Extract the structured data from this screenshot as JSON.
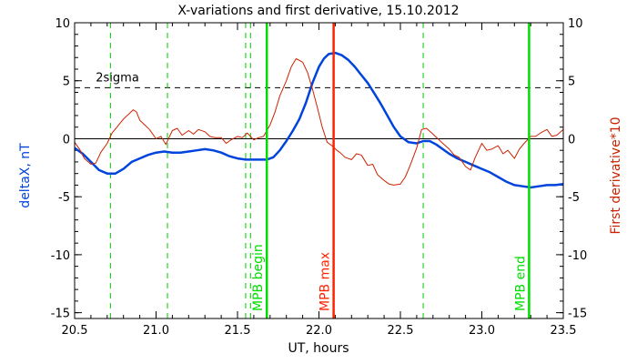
{
  "chart_data": {
    "type": "line",
    "title": "X-variations and first derivative, 15.10.2012",
    "xlabel": "UT, hours",
    "ylabel_left": "deltaX, nT",
    "ylabel_right": "First derivative*10",
    "xlim": [
      20.5,
      23.5
    ],
    "ylim": [
      -15.5,
      10
    ],
    "x_ticks": [
      "20.5",
      "21.0",
      "21.5",
      "22.0",
      "22.5",
      "23.0",
      "23.5"
    ],
    "x_tick_values": [
      20.5,
      21.0,
      21.5,
      22.0,
      22.5,
      23.0,
      23.5
    ],
    "y_ticks": [
      "10",
      "5",
      "0",
      "-5",
      "-10",
      "-15"
    ],
    "y_tick_values": [
      10,
      5,
      0,
      -5,
      -10,
      -15
    ],
    "sigma": {
      "label": "2sigma",
      "value": 4.4
    },
    "zero_line": 0,
    "dashed_markers": [
      20.72,
      21.07,
      21.55,
      21.58,
      22.64
    ],
    "markers": [
      {
        "label": "MPB begin",
        "x": 21.68,
        "color": "#00dd00"
      },
      {
        "label": "MPB max",
        "x": 22.09,
        "color": "#ff2200"
      },
      {
        "label": "MPB end",
        "x": 23.29,
        "color": "#00dd00"
      }
    ],
    "colors": {
      "deltaX": "#0044dd",
      "derivative": "#cc2200",
      "markers_dashed": "#00cc00"
    },
    "series": [
      {
        "axis": "left",
        "x": [
          20.5,
          20.55,
          20.6,
          20.65,
          20.7,
          20.75,
          20.8,
          20.85,
          20.9,
          20.95,
          21.0,
          21.05,
          21.1,
          21.15,
          21.2,
          21.25,
          21.3,
          21.35,
          21.4,
          21.45,
          21.5,
          21.55,
          21.6,
          21.65,
          21.68,
          21.72,
          21.76,
          21.8,
          21.84,
          21.88,
          21.92,
          21.96,
          22.0,
          22.03,
          22.06,
          22.1,
          22.14,
          22.18,
          22.22,
          22.26,
          22.3,
          22.34,
          22.38,
          22.42,
          22.46,
          22.5,
          22.55,
          22.6,
          22.64,
          22.68,
          22.72,
          22.76,
          22.8,
          22.85,
          22.9,
          22.95,
          23.0,
          23.05,
          23.1,
          23.15,
          23.2,
          23.25,
          23.3,
          23.35,
          23.4,
          23.45,
          23.5
        ],
        "values": [
          -0.8,
          -1.3,
          -2.0,
          -2.7,
          -3.0,
          -3.0,
          -2.6,
          -2.0,
          -1.7,
          -1.4,
          -1.2,
          -1.1,
          -1.2,
          -1.2,
          -1.1,
          -1.0,
          -0.9,
          -1.0,
          -1.2,
          -1.5,
          -1.7,
          -1.8,
          -1.8,
          -1.8,
          -1.8,
          -1.6,
          -1.0,
          -0.2,
          0.7,
          1.7,
          3.1,
          4.8,
          6.2,
          6.9,
          7.3,
          7.4,
          7.2,
          6.8,
          6.2,
          5.5,
          4.8,
          3.9,
          3.0,
          2.0,
          1.0,
          0.2,
          -0.3,
          -0.4,
          -0.2,
          -0.2,
          -0.5,
          -0.9,
          -1.3,
          -1.7,
          -2.0,
          -2.3,
          -2.6,
          -2.9,
          -3.3,
          -3.7,
          -4.0,
          -4.1,
          -4.2,
          -4.1,
          -4.0,
          -4.0,
          -3.9
        ]
      },
      {
        "axis": "right",
        "x": [
          20.5,
          20.53,
          20.56,
          20.6,
          20.63,
          20.66,
          20.7,
          20.73,
          20.76,
          20.8,
          20.83,
          20.86,
          20.88,
          20.9,
          20.93,
          20.96,
          21.0,
          21.03,
          21.06,
          21.1,
          21.13,
          21.16,
          21.2,
          21.23,
          21.26,
          21.3,
          21.33,
          21.36,
          21.4,
          21.43,
          21.46,
          21.5,
          21.53,
          21.56,
          21.6,
          21.63,
          21.66,
          21.7,
          21.73,
          21.76,
          21.8,
          21.83,
          21.86,
          21.9,
          21.93,
          21.96,
          21.99,
          22.02,
          22.05,
          22.08,
          22.11,
          22.13,
          22.16,
          22.2,
          22.23,
          22.26,
          22.3,
          22.33,
          22.36,
          22.4,
          22.43,
          22.46,
          22.5,
          22.53,
          22.56,
          22.6,
          22.63,
          22.66,
          22.7,
          22.73,
          22.76,
          22.8,
          22.83,
          22.86,
          22.9,
          22.93,
          22.96,
          23.0,
          23.03,
          23.06,
          23.1,
          23.13,
          23.16,
          23.2,
          23.23,
          23.26,
          23.3,
          23.33,
          23.36,
          23.4,
          23.43,
          23.46,
          23.5
        ],
        "values": [
          -0.3,
          -0.9,
          -1.7,
          -2.2,
          -2.1,
          -1.2,
          -0.4,
          0.5,
          1.0,
          1.7,
          2.1,
          2.5,
          2.3,
          1.6,
          1.2,
          0.8,
          0.0,
          0.2,
          -0.5,
          0.7,
          0.9,
          0.3,
          0.7,
          0.4,
          0.8,
          0.6,
          0.2,
          0.1,
          0.1,
          -0.4,
          -0.1,
          0.2,
          0.1,
          0.5,
          -0.1,
          0.1,
          0.2,
          1.2,
          2.3,
          3.7,
          5.0,
          6.2,
          6.9,
          6.6,
          5.7,
          4.3,
          2.7,
          1.0,
          -0.3,
          -0.6,
          -1.0,
          -1.2,
          -1.6,
          -1.8,
          -1.3,
          -1.4,
          -2.3,
          -2.2,
          -3.1,
          -3.6,
          -3.9,
          -4.0,
          -3.9,
          -3.3,
          -2.3,
          -0.8,
          0.8,
          0.9,
          0.4,
          0.0,
          -0.4,
          -0.9,
          -1.4,
          -1.6,
          -2.4,
          -2.7,
          -1.6,
          -0.4,
          -1.0,
          -0.9,
          -0.6,
          -1.3,
          -1.0,
          -1.7,
          -0.9,
          -0.4,
          0.2,
          0.2,
          0.5,
          0.8,
          0.2,
          0.3,
          0.8
        ]
      }
    ]
  }
}
